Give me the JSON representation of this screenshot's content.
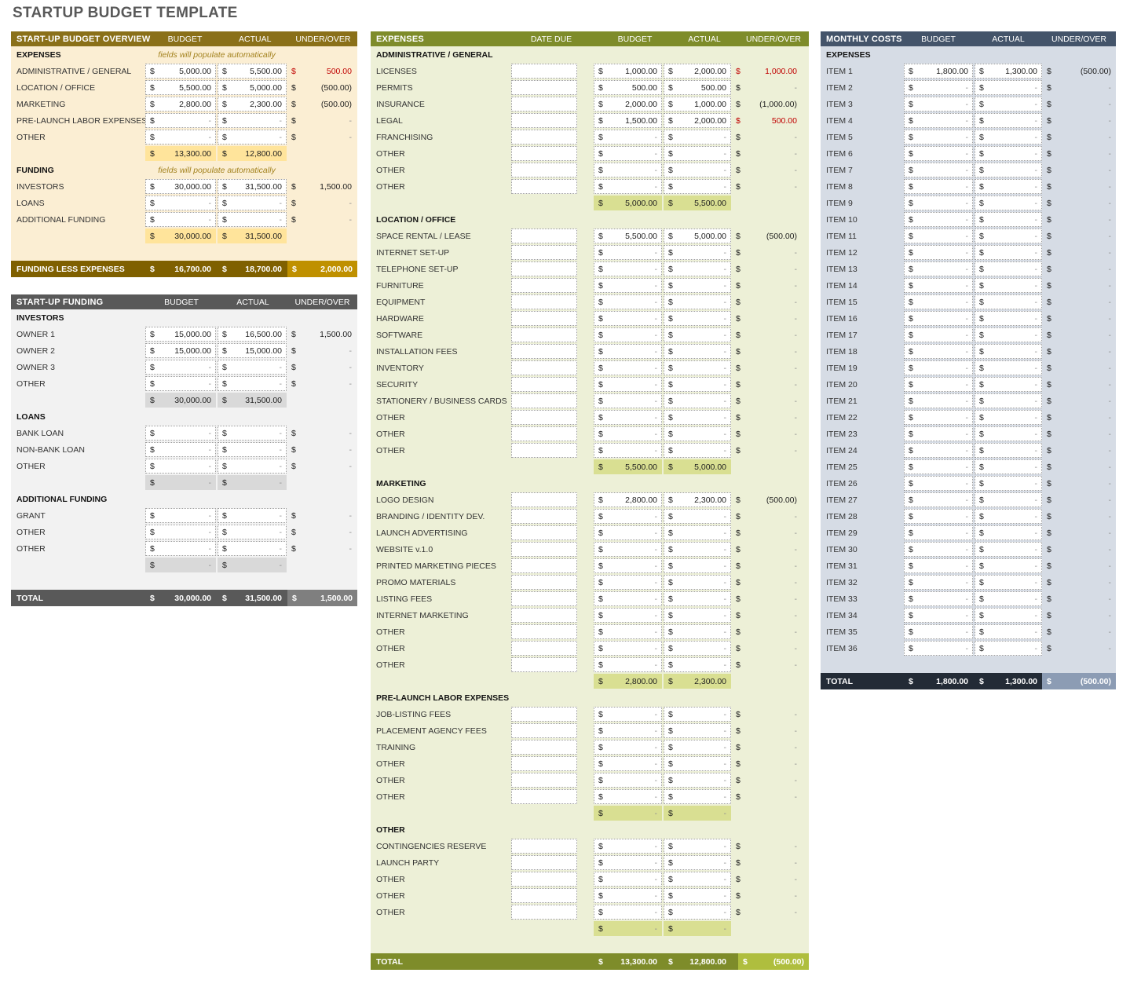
{
  "page_title": "STARTUP BUDGET TEMPLATE",
  "colors": {
    "title_text": "#595959",
    "over_budget_red": "#C00000",
    "empty_dash_gray": "#8f8f8f",
    "input_border": "#9b9b9b"
  },
  "panels": [
    {
      "id": "overview",
      "title": "START-UP BUDGET OVERVIEW",
      "columns": [
        "BUDGET",
        "ACTUAL",
        "UNDER/OVER"
      ],
      "has_date": false,
      "theme": {
        "hdr": "#8A7019",
        "body": "#FBEED3",
        "sub": "#FFE49B",
        "tbg": "#7F6000",
        "tuo": "#BF9000",
        "note": "#A3821E"
      },
      "rows": [
        {
          "t": "s",
          "label": "EXPENSES",
          "note": "fields will populate automatically"
        },
        {
          "t": "d",
          "label": "ADMINISTRATIVE / GENERAL",
          "b": "5,000.00",
          "a": "5,500.00",
          "u": "500.00",
          "r": true
        },
        {
          "t": "d",
          "label": "LOCATION / OFFICE",
          "b": "5,500.00",
          "a": "5,000.00",
          "u": "(500.00)"
        },
        {
          "t": "d",
          "label": "MARKETING",
          "b": "2,800.00",
          "a": "2,300.00",
          "u": "(500.00)"
        },
        {
          "t": "d",
          "label": "PRE-LAUNCH LABOR EXPENSES",
          "b": "-",
          "a": "-",
          "u": "-"
        },
        {
          "t": "d",
          "label": "OTHER",
          "b": "-",
          "a": "-",
          "u": "-"
        },
        {
          "t": "st",
          "b": "13,300.00",
          "a": "12,800.00"
        },
        {
          "t": "s",
          "label": "FUNDING",
          "note": "fields will populate automatically"
        },
        {
          "t": "d",
          "label": "INVESTORS",
          "b": "30,000.00",
          "a": "31,500.00",
          "u": "1,500.00"
        },
        {
          "t": "d",
          "label": "LOANS",
          "b": "-",
          "a": "-",
          "u": "-"
        },
        {
          "t": "d",
          "label": "ADDITIONAL FUNDING",
          "b": "-",
          "a": "-",
          "u": "-"
        },
        {
          "t": "st",
          "b": "30,000.00",
          "a": "31,500.00"
        },
        {
          "t": "sp"
        },
        {
          "t": "tt",
          "label": "FUNDING LESS EXPENSES",
          "b": "16,700.00",
          "a": "18,700.00",
          "u": "2,000.00"
        }
      ]
    },
    {
      "id": "startup_funding",
      "title": "START-UP FUNDING",
      "columns": [
        "BUDGET",
        "ACTUAL",
        "UNDER/OVER"
      ],
      "has_date": false,
      "theme": {
        "hdr": "#595959",
        "body": "#F2F2F2",
        "sub": "#D9D9D9",
        "tbg": "#595959",
        "tuo": "#7F7F7F",
        "note": "#8c8c8c"
      },
      "rows": [
        {
          "t": "s",
          "label": "INVESTORS"
        },
        {
          "t": "d",
          "label": "OWNER 1",
          "b": "15,000.00",
          "a": "16,500.00",
          "u": "1,500.00"
        },
        {
          "t": "d",
          "label": "OWNER 2",
          "b": "15,000.00",
          "a": "15,000.00",
          "u": "-"
        },
        {
          "t": "d",
          "label": "OWNER 3",
          "b": "-",
          "a": "-",
          "u": "-"
        },
        {
          "t": "d",
          "label": "OTHER",
          "b": "-",
          "a": "-",
          "u": "-"
        },
        {
          "t": "st",
          "b": "30,000.00",
          "a": "31,500.00"
        },
        {
          "t": "s",
          "label": "LOANS"
        },
        {
          "t": "d",
          "label": "BANK LOAN",
          "b": "-",
          "a": "-",
          "u": "-"
        },
        {
          "t": "d",
          "label": "NON-BANK LOAN",
          "b": "-",
          "a": "-",
          "u": "-"
        },
        {
          "t": "d",
          "label": "OTHER",
          "b": "-",
          "a": "-",
          "u": "-"
        },
        {
          "t": "st",
          "b": "-",
          "a": "-"
        },
        {
          "t": "s",
          "label": "ADDITIONAL FUNDING"
        },
        {
          "t": "d",
          "label": "GRANT",
          "b": "-",
          "a": "-",
          "u": "-"
        },
        {
          "t": "d",
          "label": "OTHER",
          "b": "-",
          "a": "-",
          "u": "-"
        },
        {
          "t": "d",
          "label": "OTHER",
          "b": "-",
          "a": "-",
          "u": "-"
        },
        {
          "t": "st",
          "b": "-",
          "a": "-"
        },
        {
          "t": "sp"
        },
        {
          "t": "tt",
          "label": "TOTAL",
          "b": "30,000.00",
          "a": "31,500.00",
          "u": "1,500.00"
        }
      ]
    },
    {
      "id": "expenses_detail",
      "title": "EXPENSES",
      "columns": [
        "DATE DUE",
        "BUDGET",
        "ACTUAL",
        "UNDER/OVER"
      ],
      "has_date": true,
      "theme": {
        "hdr": "#7E8C2A",
        "body": "#EDF0D7",
        "sub": "#D9DF92",
        "tbg": "#7E8C2A",
        "tuo": "#AFBE3E",
        "note": "#8a9435"
      },
      "rows": [
        {
          "t": "s",
          "label": "ADMINISTRATIVE / GENERAL"
        },
        {
          "t": "d",
          "label": "LICENSES",
          "date": "",
          "b": "1,000.00",
          "a": "2,000.00",
          "u": "1,000.00",
          "r": true
        },
        {
          "t": "d",
          "label": "PERMITS",
          "date": "",
          "b": "500.00",
          "a": "500.00",
          "u": "-"
        },
        {
          "t": "d",
          "label": "INSURANCE",
          "date": "",
          "b": "2,000.00",
          "a": "1,000.00",
          "u": "(1,000.00)"
        },
        {
          "t": "d",
          "label": "LEGAL",
          "date": "",
          "b": "1,500.00",
          "a": "2,000.00",
          "u": "500.00",
          "r": true
        },
        {
          "t": "d",
          "label": "FRANCHISING",
          "date": "",
          "b": "-",
          "a": "-",
          "u": "-"
        },
        {
          "t": "d",
          "label": "OTHER",
          "date": "",
          "b": "-",
          "a": "-",
          "u": "-"
        },
        {
          "t": "d",
          "label": "OTHER",
          "date": "",
          "b": "-",
          "a": "-",
          "u": "-"
        },
        {
          "t": "d",
          "label": "OTHER",
          "date": "",
          "b": "-",
          "a": "-",
          "u": "-"
        },
        {
          "t": "st",
          "b": "5,000.00",
          "a": "5,500.00"
        },
        {
          "t": "s",
          "label": "LOCATION / OFFICE"
        },
        {
          "t": "d",
          "label": "SPACE RENTAL / LEASE",
          "date": "",
          "b": "5,500.00",
          "a": "5,000.00",
          "u": "(500.00)"
        },
        {
          "t": "d",
          "label": "INTERNET SET-UP",
          "date": "",
          "b": "-",
          "a": "-",
          "u": "-"
        },
        {
          "t": "d",
          "label": "TELEPHONE SET-UP",
          "date": "",
          "b": "-",
          "a": "-",
          "u": "-"
        },
        {
          "t": "d",
          "label": "FURNITURE",
          "date": "",
          "b": "-",
          "a": "-",
          "u": "-"
        },
        {
          "t": "d",
          "label": "EQUIPMENT",
          "date": "",
          "b": "-",
          "a": "-",
          "u": "-"
        },
        {
          "t": "d",
          "label": "HARDWARE",
          "date": "",
          "b": "-",
          "a": "-",
          "u": "-"
        },
        {
          "t": "d",
          "label": "SOFTWARE",
          "date": "",
          "b": "-",
          "a": "-",
          "u": "-"
        },
        {
          "t": "d",
          "label": "INSTALLATION FEES",
          "date": "",
          "b": "-",
          "a": "-",
          "u": "-"
        },
        {
          "t": "d",
          "label": "INVENTORY",
          "date": "",
          "b": "-",
          "a": "-",
          "u": "-"
        },
        {
          "t": "d",
          "label": "SECURITY",
          "date": "",
          "b": "-",
          "a": "-",
          "u": "-"
        },
        {
          "t": "d",
          "label": "STATIONERY / BUSINESS CARDS",
          "date": "",
          "b": "-",
          "a": "-",
          "u": "-"
        },
        {
          "t": "d",
          "label": "OTHER",
          "date": "",
          "b": "-",
          "a": "-",
          "u": "-"
        },
        {
          "t": "d",
          "label": "OTHER",
          "date": "",
          "b": "-",
          "a": "-",
          "u": "-"
        },
        {
          "t": "d",
          "label": "OTHER",
          "date": "",
          "b": "-",
          "a": "-",
          "u": "-"
        },
        {
          "t": "st",
          "b": "5,500.00",
          "a": "5,000.00"
        },
        {
          "t": "s",
          "label": "MARKETING"
        },
        {
          "t": "d",
          "label": "LOGO DESIGN",
          "date": "",
          "b": "2,800.00",
          "a": "2,300.00",
          "u": "(500.00)"
        },
        {
          "t": "d",
          "label": "BRANDING / IDENTITY DEV.",
          "date": "",
          "b": "-",
          "a": "-",
          "u": "-"
        },
        {
          "t": "d",
          "label": "LAUNCH ADVERTISING",
          "date": "",
          "b": "-",
          "a": "-",
          "u": "-"
        },
        {
          "t": "d",
          "label": "WEBSITE v.1.0",
          "date": "",
          "b": "-",
          "a": "-",
          "u": "-"
        },
        {
          "t": "d",
          "label": "PRINTED MARKETING PIECES",
          "date": "",
          "b": "-",
          "a": "-",
          "u": "-"
        },
        {
          "t": "d",
          "label": "PROMO MATERIALS",
          "date": "",
          "b": "-",
          "a": "-",
          "u": "-"
        },
        {
          "t": "d",
          "label": "LISTING FEES",
          "date": "",
          "b": "-",
          "a": "-",
          "u": "-"
        },
        {
          "t": "d",
          "label": "INTERNET MARKETING",
          "date": "",
          "b": "-",
          "a": "-",
          "u": "-"
        },
        {
          "t": "d",
          "label": "OTHER",
          "date": "",
          "b": "-",
          "a": "-",
          "u": "-"
        },
        {
          "t": "d",
          "label": "OTHER",
          "date": "",
          "b": "-",
          "a": "-",
          "u": "-"
        },
        {
          "t": "d",
          "label": "OTHER",
          "date": "",
          "b": "-",
          "a": "-",
          "u": "-"
        },
        {
          "t": "st",
          "b": "2,800.00",
          "a": "2,300.00"
        },
        {
          "t": "s",
          "label": "PRE-LAUNCH LABOR EXPENSES"
        },
        {
          "t": "d",
          "label": "JOB-LISTING FEES",
          "date": "",
          "b": "-",
          "a": "-",
          "u": "-"
        },
        {
          "t": "d",
          "label": "PLACEMENT AGENCY FEES",
          "date": "",
          "b": "-",
          "a": "-",
          "u": "-"
        },
        {
          "t": "d",
          "label": "TRAINING",
          "date": "",
          "b": "-",
          "a": "-",
          "u": "-"
        },
        {
          "t": "d",
          "label": "OTHER",
          "date": "",
          "b": "-",
          "a": "-",
          "u": "-"
        },
        {
          "t": "d",
          "label": "OTHER",
          "date": "",
          "b": "-",
          "a": "-",
          "u": "-"
        },
        {
          "t": "d",
          "label": "OTHER",
          "date": "",
          "b": "-",
          "a": "-",
          "u": "-"
        },
        {
          "t": "st",
          "b": "-",
          "a": "-"
        },
        {
          "t": "s",
          "label": "OTHER"
        },
        {
          "t": "d",
          "label": "CONTINGENCIES RESERVE",
          "date": "",
          "b": "-",
          "a": "-",
          "u": "-"
        },
        {
          "t": "d",
          "label": "LAUNCH PARTY",
          "date": "",
          "b": "-",
          "a": "-",
          "u": "-"
        },
        {
          "t": "d",
          "label": "OTHER",
          "date": "",
          "b": "-",
          "a": "-",
          "u": "-"
        },
        {
          "t": "d",
          "label": "OTHER",
          "date": "",
          "b": "-",
          "a": "-",
          "u": "-"
        },
        {
          "t": "d",
          "label": "OTHER",
          "date": "",
          "b": "-",
          "a": "-",
          "u": "-"
        },
        {
          "t": "st",
          "b": "-",
          "a": "-"
        },
        {
          "t": "sp"
        },
        {
          "t": "tt",
          "label": "TOTAL",
          "b": "13,300.00",
          "a": "12,800.00",
          "u": "(500.00)"
        }
      ]
    },
    {
      "id": "monthly_costs",
      "title": "MONTHLY COSTS",
      "columns": [
        "BUDGET",
        "ACTUAL",
        "UNDER/OVER"
      ],
      "has_date": false,
      "theme": {
        "hdr": "#44546A",
        "body": "#D6DCE5",
        "sub": "#AEB9CA",
        "tbg": "#232B36",
        "tuo": "#8C9CB4",
        "note": "#44546A"
      },
      "rows": [
        {
          "t": "s",
          "label": "EXPENSES"
        },
        {
          "t": "d",
          "label": "ITEM 1",
          "b": "1,800.00",
          "a": "1,300.00",
          "u": "(500.00)"
        },
        {
          "t": "d",
          "label": "ITEM 2",
          "b": "-",
          "a": "-",
          "u": "-"
        },
        {
          "t": "d",
          "label": "ITEM 3",
          "b": "-",
          "a": "-",
          "u": "-"
        },
        {
          "t": "d",
          "label": "ITEM 4",
          "b": "-",
          "a": "-",
          "u": "-"
        },
        {
          "t": "d",
          "label": "ITEM 5",
          "b": "-",
          "a": "-",
          "u": "-"
        },
        {
          "t": "d",
          "label": "ITEM 6",
          "b": "-",
          "a": "-",
          "u": "-"
        },
        {
          "t": "d",
          "label": "ITEM 7",
          "b": "-",
          "a": "-",
          "u": "-"
        },
        {
          "t": "d",
          "label": "ITEM 8",
          "b": "-",
          "a": "-",
          "u": "-"
        },
        {
          "t": "d",
          "label": "ITEM 9",
          "b": "-",
          "a": "-",
          "u": "-"
        },
        {
          "t": "d",
          "label": "ITEM 10",
          "b": "-",
          "a": "-",
          "u": "-"
        },
        {
          "t": "d",
          "label": "ITEM 11",
          "b": "-",
          "a": "-",
          "u": "-"
        },
        {
          "t": "d",
          "label": "ITEM 12",
          "b": "-",
          "a": "-",
          "u": "-"
        },
        {
          "t": "d",
          "label": "ITEM 13",
          "b": "-",
          "a": "-",
          "u": "-"
        },
        {
          "t": "d",
          "label": "ITEM 14",
          "b": "-",
          "a": "-",
          "u": "-"
        },
        {
          "t": "d",
          "label": "ITEM 15",
          "b": "-",
          "a": "-",
          "u": "-"
        },
        {
          "t": "d",
          "label": "ITEM 16",
          "b": "-",
          "a": "-",
          "u": "-"
        },
        {
          "t": "d",
          "label": "ITEM 17",
          "b": "-",
          "a": "-",
          "u": "-"
        },
        {
          "t": "d",
          "label": "ITEM 18",
          "b": "-",
          "a": "-",
          "u": "-"
        },
        {
          "t": "d",
          "label": "ITEM 19",
          "b": "-",
          "a": "-",
          "u": "-"
        },
        {
          "t": "d",
          "label": "ITEM 20",
          "b": "-",
          "a": "-",
          "u": "-"
        },
        {
          "t": "d",
          "label": "ITEM 21",
          "b": "-",
          "a": "-",
          "u": "-"
        },
        {
          "t": "d",
          "label": "ITEM 22",
          "b": "-",
          "a": "-",
          "u": "-"
        },
        {
          "t": "d",
          "label": "ITEM 23",
          "b": "-",
          "a": "-",
          "u": "-"
        },
        {
          "t": "d",
          "label": "ITEM 24",
          "b": "-",
          "a": "-",
          "u": "-"
        },
        {
          "t": "d",
          "label": "ITEM 25",
          "b": "-",
          "a": "-",
          "u": "-"
        },
        {
          "t": "d",
          "label": "ITEM 26",
          "b": "-",
          "a": "-",
          "u": "-"
        },
        {
          "t": "d",
          "label": "ITEM 27",
          "b": "-",
          "a": "-",
          "u": "-"
        },
        {
          "t": "d",
          "label": "ITEM 28",
          "b": "-",
          "a": "-",
          "u": "-"
        },
        {
          "t": "d",
          "label": "ITEM 29",
          "b": "-",
          "a": "-",
          "u": "-"
        },
        {
          "t": "d",
          "label": "ITEM 30",
          "b": "-",
          "a": "-",
          "u": "-"
        },
        {
          "t": "d",
          "label": "ITEM 31",
          "b": "-",
          "a": "-",
          "u": "-"
        },
        {
          "t": "d",
          "label": "ITEM 32",
          "b": "-",
          "a": "-",
          "u": "-"
        },
        {
          "t": "d",
          "label": "ITEM 33",
          "b": "-",
          "a": "-",
          "u": "-"
        },
        {
          "t": "d",
          "label": "ITEM 34",
          "b": "-",
          "a": "-",
          "u": "-"
        },
        {
          "t": "d",
          "label": "ITEM 35",
          "b": "-",
          "a": "-",
          "u": "-"
        },
        {
          "t": "d",
          "label": "ITEM 36",
          "b": "-",
          "a": "-",
          "u": "-"
        },
        {
          "t": "sp"
        },
        {
          "t": "tt",
          "label": "TOTAL",
          "b": "1,800.00",
          "a": "1,300.00",
          "u": "(500.00)"
        }
      ]
    }
  ]
}
